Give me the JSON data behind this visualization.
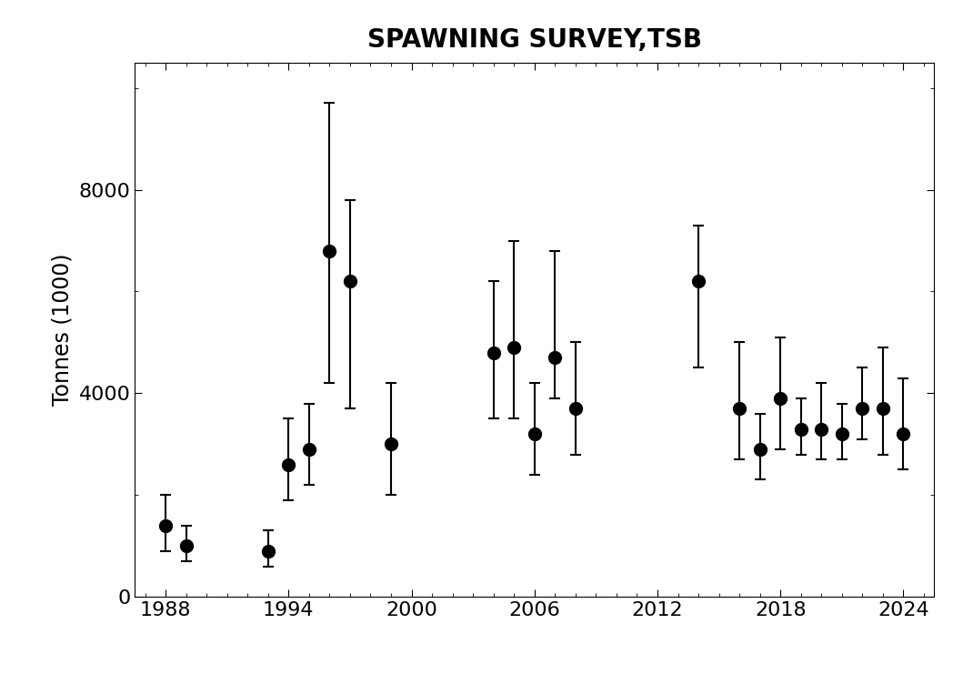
{
  "title": "SPAWNING SURVEY,TSB",
  "ylabel": "Tonnes (1000)",
  "years": [
    1988,
    1989,
    1993,
    1994,
    1995,
    1996,
    1997,
    1999,
    2004,
    2005,
    2006,
    2007,
    2008,
    2014,
    2016,
    2017,
    2018,
    2019,
    2020,
    2021,
    2022,
    2023,
    2024
  ],
  "values": [
    1400,
    1000,
    900,
    2600,
    2900,
    6800,
    6200,
    3000,
    4800,
    4900,
    3200,
    4700,
    3700,
    6200,
    3700,
    2900,
    3900,
    3300,
    3300,
    3200,
    3700,
    3700,
    3200
  ],
  "ci_lo": [
    900,
    700,
    600,
    1900,
    2200,
    4200,
    3700,
    2000,
    3500,
    3500,
    2400,
    3900,
    2800,
    4500,
    2700,
    2300,
    2900,
    2800,
    2700,
    2700,
    3100,
    2800,
    2500
  ],
  "ci_hi": [
    2000,
    1400,
    1300,
    3500,
    3800,
    9700,
    7800,
    4200,
    6200,
    7000,
    4200,
    6800,
    5000,
    7300,
    5000,
    3600,
    5100,
    3900,
    4200,
    3800,
    4500,
    4900,
    4300
  ],
  "xlim": [
    1986.5,
    2025.5
  ],
  "ylim": [
    0,
    10500
  ],
  "xticks": [
    1988,
    1994,
    2000,
    2006,
    2012,
    2018,
    2024
  ],
  "yticks": [
    0,
    4000,
    8000
  ],
  "point_color": "black",
  "line_color": "black",
  "bg_color": "white",
  "title_fontsize": 20,
  "label_fontsize": 17,
  "tick_fontsize": 16
}
